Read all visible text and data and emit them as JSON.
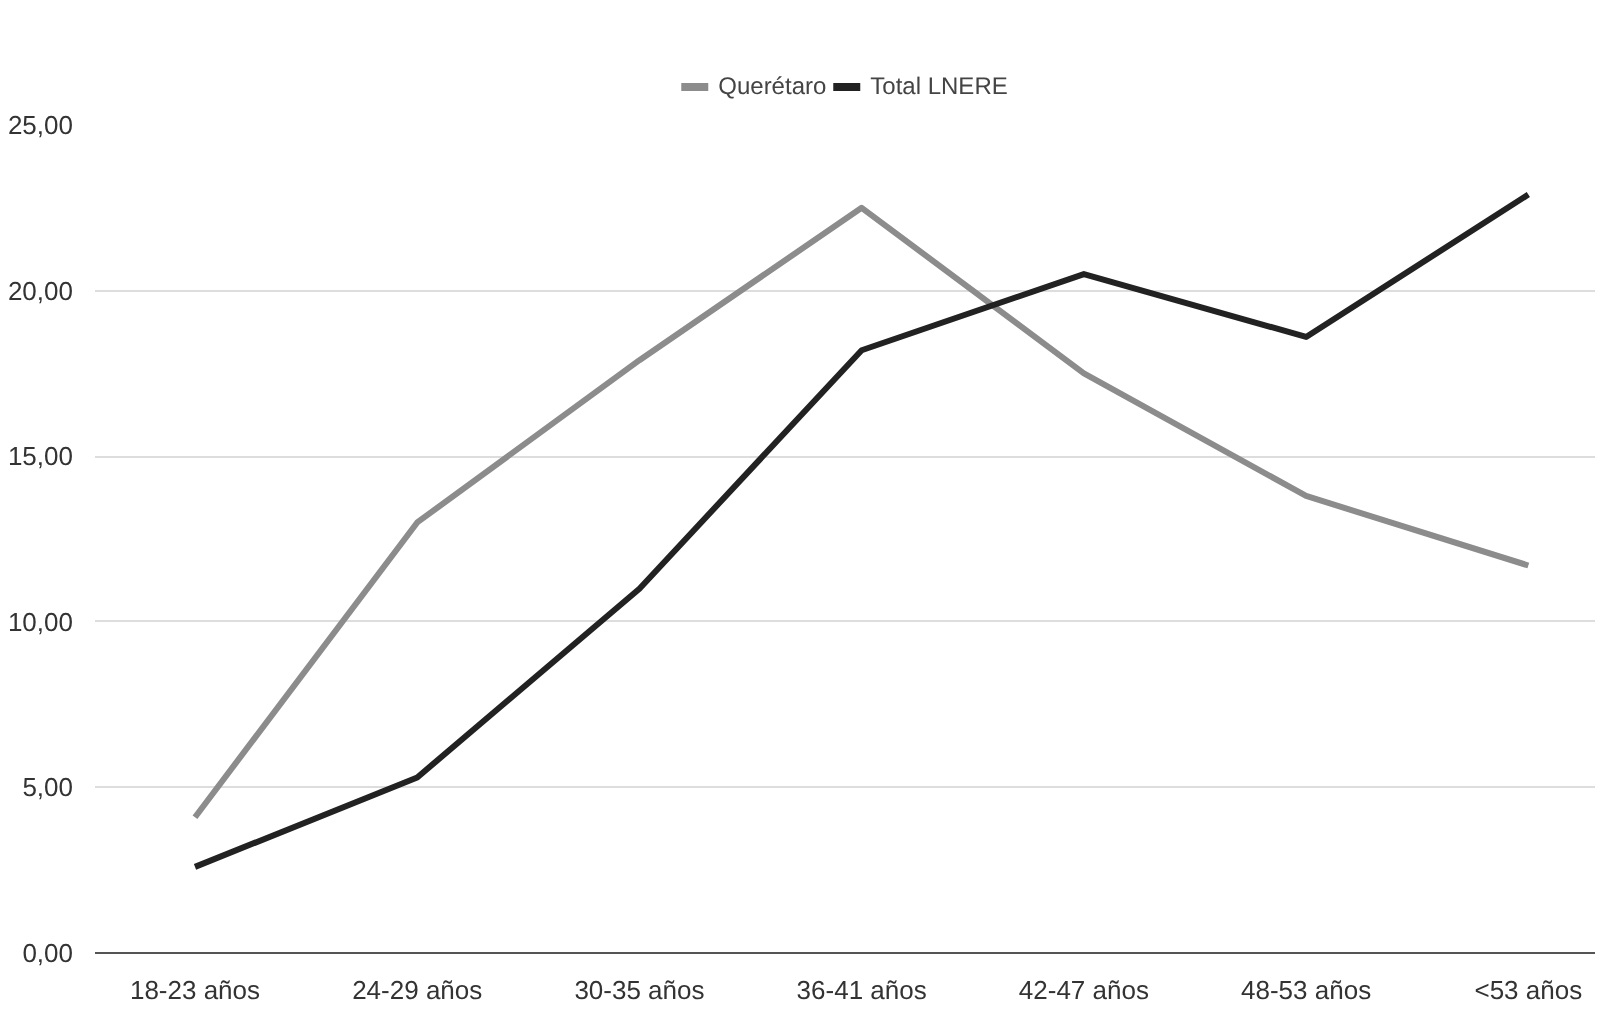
{
  "chart_data": {
    "type": "line",
    "categories": [
      "18-23 años",
      "24-29 años",
      "30-35 años",
      "36-41 años",
      "42-47 años",
      "48-53 años",
      "<53 años"
    ],
    "series": [
      {
        "name": "Querétaro",
        "color": "#8c8c8c",
        "values": [
          4.1,
          13.0,
          17.9,
          22.5,
          17.5,
          13.8,
          11.7
        ]
      },
      {
        "name": "Total LNERE",
        "color": "#222222",
        "values": [
          2.6,
          5.3,
          11.0,
          18.2,
          20.5,
          18.6,
          22.9
        ]
      }
    ],
    "ylim": [
      0,
      25
    ],
    "yticks": [
      {
        "value": 0,
        "label": "0,00"
      },
      {
        "value": 5,
        "label": "5,00"
      },
      {
        "value": 10,
        "label": "10,00"
      },
      {
        "value": 15,
        "label": "15,00"
      },
      {
        "value": 20,
        "label": "20,00"
      },
      {
        "value": 25,
        "label": "25,00"
      }
    ],
    "grid": "y",
    "legend": "top",
    "marker": "none",
    "line_style": "solid"
  }
}
